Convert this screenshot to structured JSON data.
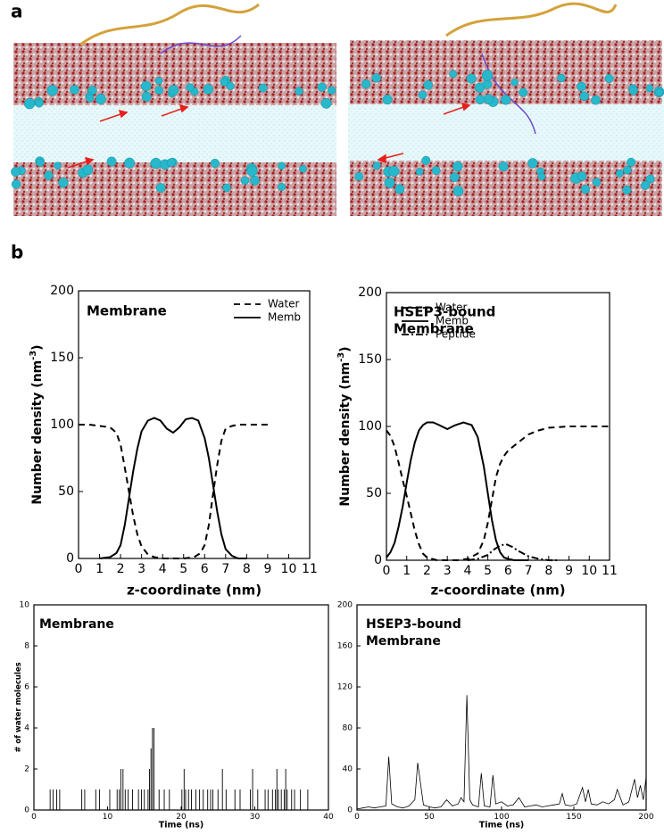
{
  "panel_labels": [
    "a",
    "b"
  ],
  "chart_data": [
    {
      "type": "line",
      "title": [
        "Membrane"
      ],
      "xlabel": "z-coordinate (nm)",
      "ylabel": [
        "Number density (nm",
        "-3",
        ")"
      ],
      "xlim": [
        0,
        11
      ],
      "xticks": [
        0,
        1,
        2,
        3,
        4,
        5,
        6,
        7,
        8,
        9,
        10,
        11
      ],
      "ylim": [
        0,
        200
      ],
      "yticks": [
        0,
        50,
        100,
        150,
        200
      ],
      "legend": "upper right",
      "series": [
        {
          "name": "Water",
          "color": "#000000",
          "dash": "dashed",
          "x": [
            0,
            0.5,
            1,
            1.5,
            1.8,
            2,
            2.2,
            2.4,
            2.6,
            2.8,
            3,
            3.3,
            3.6,
            4,
            5,
            5.5,
            5.8,
            6,
            6.2,
            6.4,
            6.6,
            6.8,
            7,
            7.3,
            7.6,
            8,
            9
          ],
          "values": [
            100,
            100,
            99,
            98,
            94,
            85,
            68,
            50,
            32,
            18,
            9,
            3,
            1,
            0,
            0,
            1,
            4,
            10,
            25,
            48,
            70,
            88,
            97,
            99,
            100,
            100,
            100
          ]
        },
        {
          "name": "Memb",
          "color": "#000000",
          "dash": "solid",
          "x": [
            1,
            1.5,
            1.8,
            2,
            2.2,
            2.4,
            2.6,
            2.8,
            3,
            3.3,
            3.6,
            3.9,
            4.2,
            4.5,
            4.8,
            5.1,
            5.4,
            5.7,
            6,
            6.2,
            6.4,
            6.6,
            6.8,
            7,
            7.3,
            7.6,
            8
          ],
          "values": [
            0,
            1,
            4,
            10,
            25,
            45,
            65,
            82,
            95,
            103,
            105,
            103,
            97,
            94,
            98,
            104,
            105,
            103,
            90,
            75,
            55,
            35,
            18,
            7,
            2,
            0,
            0
          ]
        }
      ]
    },
    {
      "type": "line",
      "title": [
        "HSEP3-bound",
        "Membrane"
      ],
      "xlabel": "z-coordinate (nm)",
      "ylabel": [
        "Number density (nm",
        "-3",
        ")"
      ],
      "xlim": [
        0,
        11
      ],
      "xticks": [
        0,
        1,
        2,
        3,
        4,
        5,
        6,
        7,
        8,
        9,
        10,
        11
      ],
      "ylim": [
        0,
        200
      ],
      "yticks": [
        0,
        50,
        100,
        150,
        200
      ],
      "legend": "upper right",
      "series": [
        {
          "name": "Water",
          "color": "#000000",
          "dash": "dashed",
          "x": [
            0,
            0.2,
            0.4,
            0.6,
            0.8,
            1,
            1.2,
            1.4,
            1.6,
            1.8,
            2,
            2.5,
            3,
            3.5,
            4,
            4.5,
            4.8,
            5,
            5.2,
            5.4,
            5.6,
            5.8,
            6,
            6.5,
            7,
            7.5,
            8,
            9,
            10,
            11
          ],
          "values": [
            97,
            93,
            85,
            73,
            60,
            48,
            35,
            22,
            12,
            5,
            2,
            0,
            0,
            0,
            1,
            5,
            15,
            28,
            45,
            62,
            72,
            78,
            82,
            88,
            94,
            97,
            99,
            100,
            100,
            100
          ]
        },
        {
          "name": "Memb",
          "color": "#000000",
          "dash": "solid",
          "x": [
            0,
            0.2,
            0.4,
            0.6,
            0.8,
            1,
            1.2,
            1.4,
            1.6,
            1.8,
            2,
            2.3,
            2.6,
            3,
            3.4,
            3.8,
            4.2,
            4.5,
            4.8,
            5,
            5.2,
            5.4,
            5.6,
            5.8,
            6,
            6.3,
            6.6,
            7
          ],
          "values": [
            2,
            6,
            13,
            25,
            40,
            58,
            75,
            88,
            97,
            101,
            103,
            103,
            101,
            98,
            101,
            103,
            101,
            92,
            70,
            50,
            30,
            15,
            6,
            2,
            1,
            0,
            0,
            0
          ]
        },
        {
          "name": "Peptide",
          "color": "#000000",
          "dash": "dashdot",
          "x": [
            4,
            4.5,
            5,
            5.3,
            5.6,
            5.9,
            6.2,
            6.5,
            7,
            7.5,
            8,
            8.5
          ],
          "values": [
            0,
            1,
            4,
            8,
            11,
            12,
            10,
            7,
            3,
            1,
            0,
            0
          ]
        }
      ]
    },
    {
      "type": "impulse",
      "title": [
        "Membrane"
      ],
      "xlabel": "Time (ns)",
      "ylabel": [
        "# of water molecules"
      ],
      "color": "#000000",
      "xlim": [
        0,
        40
      ],
      "xticks": [
        0,
        10,
        20,
        30,
        40
      ],
      "ylim": [
        0,
        10
      ],
      "yticks": [
        0,
        2,
        4,
        6,
        8,
        10
      ],
      "x": [
        2.2,
        2.6,
        3.1,
        3.5,
        6.5,
        6.9,
        8.4,
        8.9,
        10.3,
        11.3,
        11.6,
        11.8,
        12.1,
        12.4,
        12.8,
        13.4,
        14.2,
        14.6,
        15,
        15.5,
        15.7,
        15.9,
        16.1,
        16.3,
        17,
        17.7,
        18.4,
        20.1,
        20.4,
        20.6,
        21,
        21.4,
        22,
        22.5,
        23,
        23.6,
        24,
        24.3,
        25,
        25.6,
        26.1,
        27.3,
        28,
        29.4,
        29.7,
        30.4,
        31.4,
        31.8,
        32.4,
        32.8,
        33,
        33.2,
        33.6,
        34,
        34.2,
        34.4,
        35,
        35.4,
        36.2,
        37.2
      ],
      "values": [
        1,
        1,
        1,
        1,
        1,
        1,
        1,
        1,
        1,
        1,
        1,
        2,
        2,
        1,
        1,
        1,
        1,
        1,
        1,
        1,
        2,
        3,
        4,
        4,
        1,
        1,
        1,
        1,
        2,
        1,
        1,
        1,
        1,
        1,
        1,
        1,
        1,
        1,
        1,
        2,
        1,
        1,
        1,
        1,
        2,
        1,
        1,
        1,
        1,
        1,
        2,
        1,
        1,
        1,
        2,
        1,
        1,
        1,
        1,
        1
      ]
    },
    {
      "type": "line",
      "title": [
        "HSEP3-bound",
        "Membrane"
      ],
      "xlabel": "Time (ns)",
      "color": "#000000",
      "xlim": [
        0,
        200
      ],
      "xticks": [
        0,
        50,
        100,
        150,
        200
      ],
      "ylim": [
        0,
        200
      ],
      "yticks": [
        0,
        40,
        80,
        120,
        160,
        200
      ],
      "x": [
        0,
        4,
        8,
        12,
        16,
        20,
        22,
        24,
        28,
        32,
        36,
        40,
        42,
        46,
        50,
        54,
        58,
        62,
        66,
        70,
        72,
        74,
        76,
        78,
        80,
        84,
        86,
        88,
        92,
        94,
        96,
        100,
        104,
        108,
        112,
        116,
        120,
        124,
        128,
        132,
        136,
        140,
        142,
        144,
        148,
        152,
        156,
        158,
        160,
        162,
        166,
        170,
        174,
        178,
        180,
        184,
        188,
        192,
        194,
        196,
        198,
        200
      ],
      "values": [
        1,
        2,
        3,
        2,
        3,
        4,
        52,
        6,
        3,
        2,
        4,
        10,
        46,
        5,
        3,
        2,
        3,
        10,
        4,
        6,
        12,
        8,
        112,
        10,
        5,
        3,
        36,
        4,
        3,
        34,
        6,
        8,
        4,
        5,
        12,
        3,
        4,
        5,
        3,
        4,
        5,
        6,
        16,
        5,
        4,
        6,
        22,
        8,
        20,
        6,
        5,
        8,
        6,
        10,
        20,
        5,
        8,
        30,
        12,
        24,
        10,
        32
      ]
    }
  ]
}
